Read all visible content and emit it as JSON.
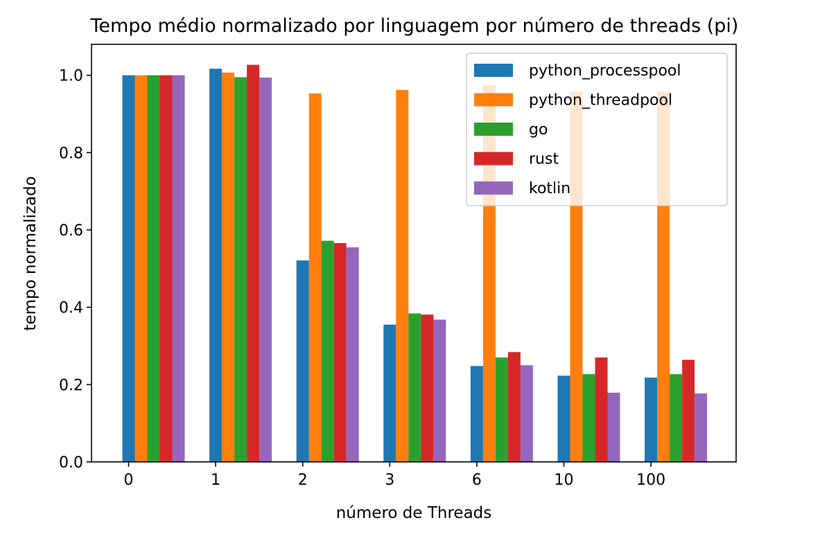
{
  "chart_data": {
    "type": "bar",
    "title": "Tempo médio normalizado por linguagem por número de threads (pi)",
    "xlabel": "número de Threads",
    "ylabel": "tempo normalizado",
    "categories": [
      "0",
      "1",
      "2",
      "3",
      "6",
      "10",
      "100"
    ],
    "ylim": [
      0,
      1.08
    ],
    "yticks": [
      0.0,
      0.2,
      0.4,
      0.6,
      0.8,
      1.0
    ],
    "ytick_labels": [
      "0.0",
      "0.2",
      "0.4",
      "0.6",
      "0.8",
      "1.0"
    ],
    "grid": false,
    "legend_position": "top-right",
    "series": [
      {
        "name": "python_processpool",
        "color": "#1f77b4",
        "values": [
          1.0,
          1.017,
          0.521,
          0.355,
          0.248,
          0.223,
          0.218
        ]
      },
      {
        "name": "python_threadpool",
        "color": "#ff7f0e",
        "values": [
          1.0,
          1.007,
          0.953,
          0.962,
          0.975,
          0.958,
          0.958
        ]
      },
      {
        "name": "go",
        "color": "#2ca02c",
        "values": [
          1.0,
          0.995,
          0.572,
          0.384,
          0.27,
          0.227,
          0.227
        ]
      },
      {
        "name": "rust",
        "color": "#d62728",
        "values": [
          1.0,
          1.027,
          0.566,
          0.381,
          0.284,
          0.27,
          0.264
        ]
      },
      {
        "name": "kotlin",
        "color": "#9467bd",
        "values": [
          1.0,
          0.994,
          0.555,
          0.368,
          0.25,
          0.179,
          0.177
        ]
      }
    ]
  }
}
